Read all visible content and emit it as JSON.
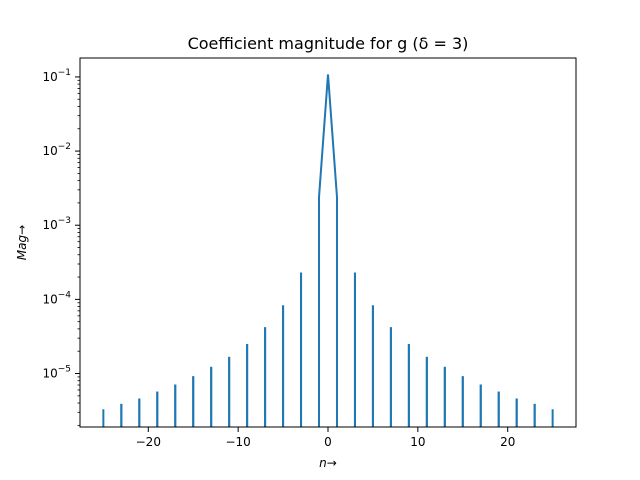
{
  "chart_data": {
    "type": "line",
    "title": "Coefficient magnitude for g (δ = 3)",
    "xlabel": "n→",
    "ylabel": "Mag→",
    "xlim": [
      -27.6,
      27.6
    ],
    "ylim": [
      1.9e-06,
      0.18
    ],
    "yscale": "log",
    "grid": false,
    "x_ticks": [
      -20,
      -10,
      0,
      10,
      20
    ],
    "x_tick_labels": [
      "−20",
      "−10",
      "0",
      "10",
      "20"
    ],
    "y_ticks": [
      {
        "value": 0.1,
        "base": "10",
        "exp": "−1"
      },
      {
        "value": 0.01,
        "base": "10",
        "exp": "−2"
      },
      {
        "value": 0.001,
        "base": "10",
        "exp": "−3"
      },
      {
        "value": 0.0001,
        "base": "10",
        "exp": "−4"
      },
      {
        "value": 1e-05,
        "base": "10",
        "exp": "−5"
      }
    ],
    "series": [
      {
        "color": "#1f77b4",
        "points": [
          {
            "n": -25,
            "mag": 3.3e-06
          },
          {
            "n": -23,
            "mag": 3.9e-06
          },
          {
            "n": -21,
            "mag": 4.6e-06
          },
          {
            "n": -19,
            "mag": 5.7e-06
          },
          {
            "n": -17,
            "mag": 7.1e-06
          },
          {
            "n": -15,
            "mag": 9.2e-06
          },
          {
            "n": -13,
            "mag": 1.23e-05
          },
          {
            "n": -11,
            "mag": 1.68e-05
          },
          {
            "n": -9,
            "mag": 2.5e-05
          },
          {
            "n": -7,
            "mag": 4.2e-05
          },
          {
            "n": -5,
            "mag": 8.3e-05
          },
          {
            "n": -3,
            "mag": 0.00023
          },
          {
            "n": -1,
            "mag": 0.0024
          },
          {
            "n": 0,
            "mag": 0.108
          },
          {
            "n": 1,
            "mag": 0.0024
          },
          {
            "n": 3,
            "mag": 0.00023
          },
          {
            "n": 5,
            "mag": 8.3e-05
          },
          {
            "n": 7,
            "mag": 4.2e-05
          },
          {
            "n": 9,
            "mag": 2.5e-05
          },
          {
            "n": 11,
            "mag": 1.68e-05
          },
          {
            "n": 13,
            "mag": 1.23e-05
          },
          {
            "n": 15,
            "mag": 9.2e-06
          },
          {
            "n": 17,
            "mag": 7.1e-06
          },
          {
            "n": 19,
            "mag": 5.7e-06
          },
          {
            "n": 21,
            "mag": 4.6e-06
          },
          {
            "n": 23,
            "mag": 3.9e-06
          },
          {
            "n": 25,
            "mag": 3.3e-06
          }
        ]
      }
    ]
  }
}
